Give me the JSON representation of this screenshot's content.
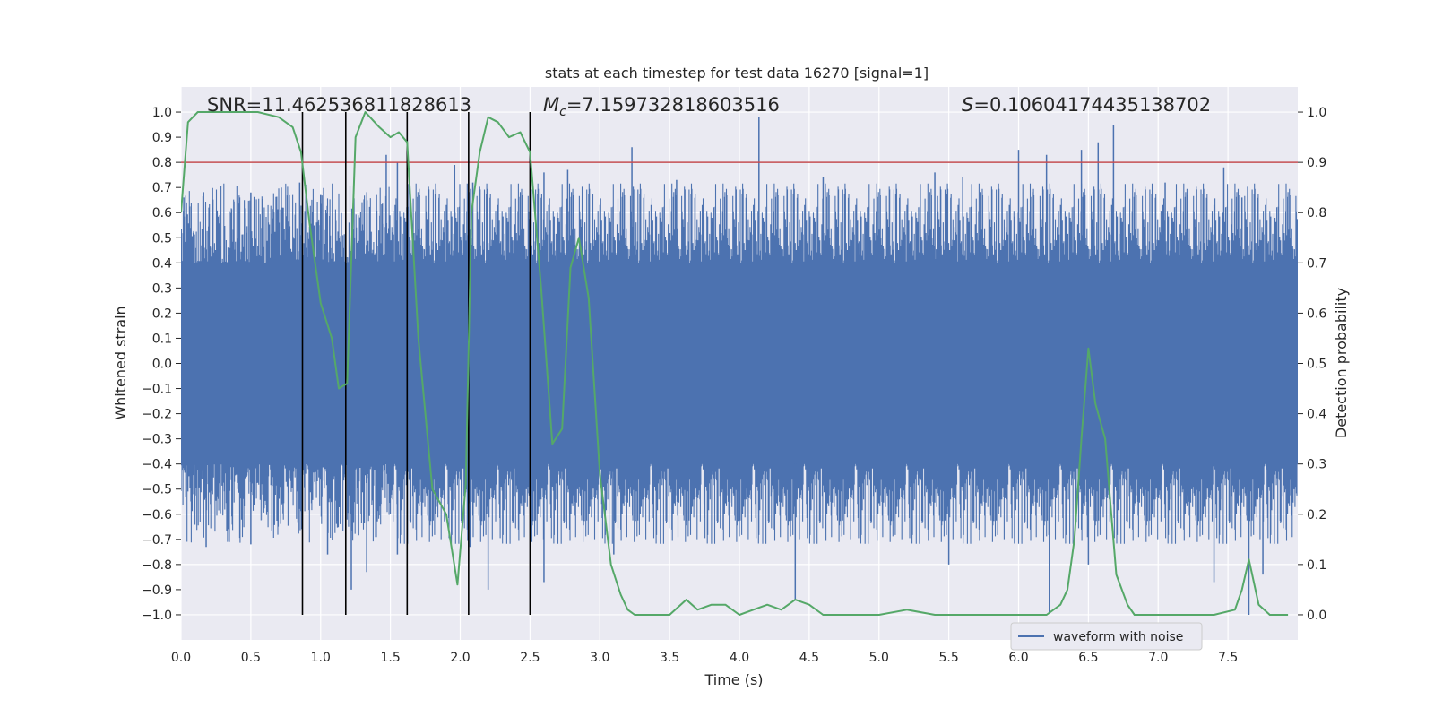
{
  "chart_data": {
    "type": "line",
    "title": "stats at each timestep for test data 16270 [signal=1]",
    "xlabel": "Time (s)",
    "ylabel": "Whitened strain",
    "y2label": "Detection probability",
    "xlim": [
      0.0,
      8.0
    ],
    "ylim": [
      -1.1,
      1.1
    ],
    "y2lim": [
      -0.05,
      1.05
    ],
    "xticks": [
      "0.0",
      "0.5",
      "1.0",
      "1.5",
      "2.0",
      "2.5",
      "3.0",
      "3.5",
      "4.0",
      "4.5",
      "5.0",
      "5.5",
      "6.0",
      "6.5",
      "7.0",
      "7.5"
    ],
    "yticks": [
      "−1.0",
      "−0.9",
      "−0.8",
      "−0.7",
      "−0.6",
      "−0.5",
      "−0.4",
      "−0.3",
      "−0.2",
      "−0.1",
      "0.0",
      "0.1",
      "0.2",
      "0.3",
      "0.4",
      "0.5",
      "0.6",
      "0.7",
      "0.8",
      "0.9",
      "1.0"
    ],
    "y2ticks": [
      "0.0",
      "0.1",
      "0.2",
      "0.3",
      "0.4",
      "0.5",
      "0.6",
      "0.7",
      "0.8",
      "0.9",
      "1.0"
    ],
    "grid": true,
    "legend": {
      "entries": [
        "waveform with noise"
      ],
      "placement": "lower-right"
    },
    "annotations": {
      "snr": "SNR=11.462536811828613",
      "mc_symbol": "M",
      "mc_sub": "c",
      "mc_value": "=7.159732818603516",
      "s_symbol": "S",
      "s_value": "=0.10604174435138702"
    },
    "threshold_line": {
      "y2": 0.9,
      "color": "#c44e52"
    },
    "vertical_markers_x": [
      0.87,
      1.18,
      1.62,
      2.06,
      2.5
    ],
    "series": [
      {
        "name": "waveform with noise",
        "axis": "left",
        "color": "#4c72b0",
        "noise_band": {
          "core_min": -0.4,
          "core_max": 0.4
        },
        "spikes_up": [
          {
            "x": 0.02,
            "y": 0.66
          },
          {
            "x": 0.2,
            "y": 0.62
          },
          {
            "x": 0.42,
            "y": 0.66
          },
          {
            "x": 0.5,
            "y": 0.68
          },
          {
            "x": 0.85,
            "y": 0.72
          },
          {
            "x": 1.0,
            "y": 0.67
          },
          {
            "x": 1.4,
            "y": 0.67
          },
          {
            "x": 1.47,
            "y": 0.83
          },
          {
            "x": 1.55,
            "y": 0.8
          },
          {
            "x": 1.96,
            "y": 0.79
          },
          {
            "x": 2.09,
            "y": 0.72
          },
          {
            "x": 2.6,
            "y": 0.76
          },
          {
            "x": 2.77,
            "y": 0.77
          },
          {
            "x": 3.23,
            "y": 0.86
          },
          {
            "x": 3.55,
            "y": 0.73
          },
          {
            "x": 4.14,
            "y": 0.98
          },
          {
            "x": 4.6,
            "y": 0.74
          },
          {
            "x": 5.4,
            "y": 0.76
          },
          {
            "x": 5.6,
            "y": 0.74
          },
          {
            "x": 6.0,
            "y": 0.85
          },
          {
            "x": 6.2,
            "y": 0.83
          },
          {
            "x": 6.45,
            "y": 0.85
          },
          {
            "x": 6.57,
            "y": 0.88
          },
          {
            "x": 6.68,
            "y": 0.95
          },
          {
            "x": 7.05,
            "y": 0.72
          },
          {
            "x": 7.47,
            "y": 0.78
          },
          {
            "x": 7.6,
            "y": 0.66
          }
        ],
        "spikes_down": [
          {
            "x": 0.18,
            "y": -0.73
          },
          {
            "x": 0.5,
            "y": -0.72
          },
          {
            "x": 1.05,
            "y": -0.76
          },
          {
            "x": 1.22,
            "y": -0.9
          },
          {
            "x": 1.33,
            "y": -0.83
          },
          {
            "x": 1.55,
            "y": -0.76
          },
          {
            "x": 2.07,
            "y": -0.73
          },
          {
            "x": 2.2,
            "y": -0.9
          },
          {
            "x": 2.6,
            "y": -0.87
          },
          {
            "x": 3.1,
            "y": -0.76
          },
          {
            "x": 4.4,
            "y": -0.94
          },
          {
            "x": 5.5,
            "y": -0.8
          },
          {
            "x": 6.22,
            "y": -0.99
          },
          {
            "x": 6.5,
            "y": -0.8
          },
          {
            "x": 7.4,
            "y": -0.87
          },
          {
            "x": 7.65,
            "y": -1.0
          },
          {
            "x": 7.75,
            "y": -0.84
          }
        ]
      },
      {
        "name": "",
        "axis": "right",
        "color": "#55a868",
        "x": [
          0.0,
          0.05,
          0.12,
          0.25,
          0.4,
          0.55,
          0.7,
          0.8,
          0.86,
          0.92,
          1.0,
          1.08,
          1.13,
          1.19,
          1.25,
          1.32,
          1.42,
          1.5,
          1.56,
          1.62,
          1.7,
          1.8,
          1.9,
          1.98,
          2.04,
          2.08,
          2.14,
          2.2,
          2.27,
          2.35,
          2.43,
          2.5,
          2.58,
          2.66,
          2.73,
          2.79,
          2.85,
          2.92,
          3.0,
          3.08,
          3.15,
          3.2,
          3.25,
          3.35,
          3.5,
          3.62,
          3.7,
          3.8,
          3.9,
          4.0,
          4.1,
          4.2,
          4.3,
          4.4,
          4.5,
          4.6,
          4.7,
          5.0,
          5.2,
          5.4,
          5.6,
          5.8,
          6.0,
          6.2,
          6.3,
          6.35,
          6.4,
          6.45,
          6.5,
          6.55,
          6.62,
          6.7,
          6.78,
          6.83,
          6.9,
          7.0,
          7.2,
          7.4,
          7.55,
          7.6,
          7.65,
          7.72,
          7.8,
          7.93
        ],
        "values": [
          0.8,
          0.98,
          1.0,
          1.0,
          1.0,
          1.0,
          0.99,
          0.97,
          0.92,
          0.78,
          0.62,
          0.55,
          0.45,
          0.46,
          0.95,
          1.0,
          0.97,
          0.95,
          0.96,
          0.94,
          0.55,
          0.25,
          0.2,
          0.06,
          0.26,
          0.8,
          0.92,
          0.99,
          0.98,
          0.95,
          0.96,
          0.92,
          0.65,
          0.34,
          0.37,
          0.69,
          0.75,
          0.63,
          0.28,
          0.1,
          0.04,
          0.01,
          0.0,
          0.0,
          0.0,
          0.03,
          0.01,
          0.02,
          0.02,
          0.0,
          0.01,
          0.02,
          0.01,
          0.03,
          0.02,
          0.0,
          0.0,
          0.0,
          0.01,
          0.0,
          0.0,
          0.0,
          0.0,
          0.0,
          0.02,
          0.05,
          0.15,
          0.35,
          0.53,
          0.42,
          0.35,
          0.08,
          0.02,
          0.0,
          0.0,
          0.0,
          0.0,
          0.0,
          0.01,
          0.05,
          0.11,
          0.02,
          0.0,
          0.0
        ]
      }
    ]
  }
}
